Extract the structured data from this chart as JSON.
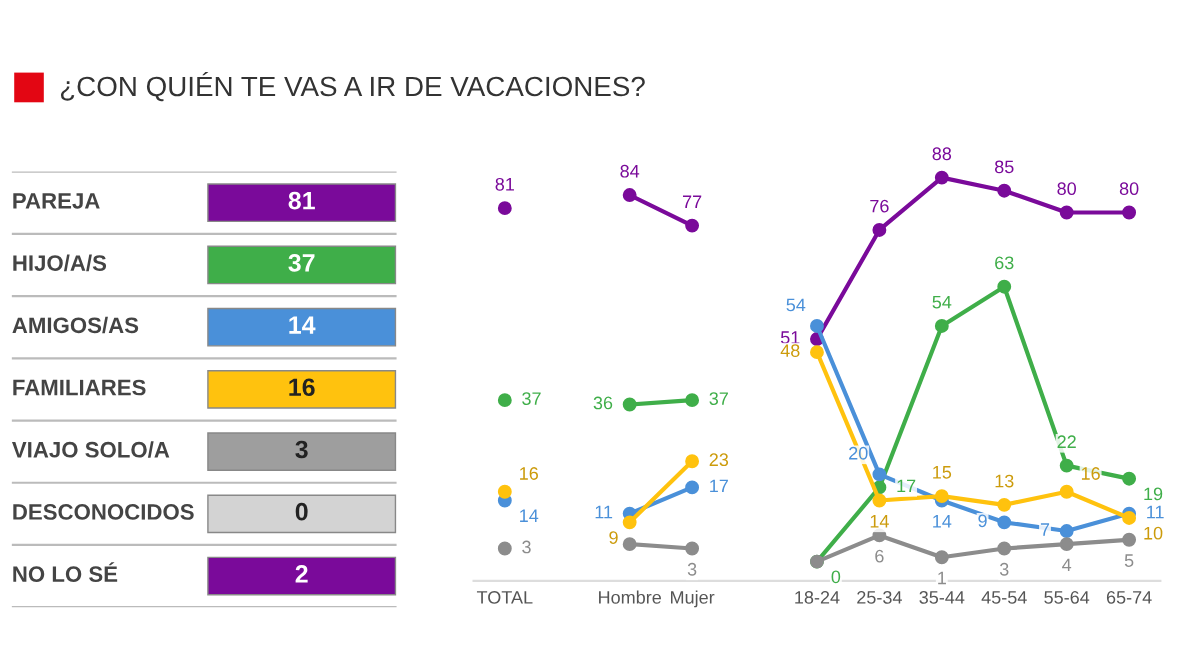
{
  "chart_data": [
    {
      "type": "other",
      "title": "¿CON QUIÉN TE VAS A IR DE VACACIONES?",
      "categories": [
        "PAREJA",
        "HIJO/A/S",
        "AMIGOS/AS",
        "FAMILIARES",
        "VIAJO SOLO/A",
        "DESCONOCIDOS",
        "NO LO SÉ"
      ],
      "values": [
        81,
        37,
        14,
        16,
        3,
        0,
        2
      ],
      "colors": [
        "#7a0a9a",
        "#3fae49",
        "#4a90d9",
        "#ffc20e",
        "#9e9e9e",
        "#d3d3d3",
        "#7a0a9a"
      ],
      "data_labels": true
    },
    {
      "type": "line",
      "marker": "circle",
      "line_style": "solid",
      "grid": false,
      "legend": false,
      "categories": [
        "TOTAL",
        null,
        "Hombre",
        "Mujer",
        null,
        "18-24",
        "25-34",
        "35-44",
        "45-54",
        "55-64",
        "65-74"
      ],
      "series": [
        {
          "color": "#7a0a9a",
          "values": [
            81,
            null,
            84,
            77,
            null,
            51,
            76,
            88,
            85,
            80,
            80
          ],
          "value_labels": [
            "81",
            null,
            "84",
            "77",
            null,
            "51",
            "76",
            "88",
            "85",
            "80",
            "80"
          ]
        },
        {
          "color": "#3fae49",
          "values": [
            37,
            null,
            36,
            37,
            null,
            0,
            17,
            54,
            63,
            22,
            19
          ],
          "value_labels": [
            "37",
            null,
            "36",
            "37",
            null,
            "0",
            "17",
            "54",
            "63",
            "22",
            "19"
          ]
        },
        {
          "color": "#4a90d9",
          "values": [
            14,
            null,
            11,
            17,
            null,
            54,
            20,
            14,
            9,
            7,
            11
          ],
          "value_labels": [
            "14",
            null,
            "11",
            "17",
            null,
            "54",
            "20",
            "14",
            "9",
            "7",
            "11"
          ]
        },
        {
          "color": "#ffc20e",
          "values": [
            16,
            null,
            9,
            23,
            null,
            48,
            14,
            15,
            13,
            16,
            10
          ],
          "value_labels": [
            "16",
            null,
            "9",
            "23",
            null,
            "48",
            "14",
            "15",
            "13",
            "16",
            "10"
          ]
        },
        {
          "color": "#8c8c8c",
          "values": [
            3,
            null,
            4,
            3,
            null,
            0,
            6,
            1,
            3,
            4,
            5
          ],
          "value_labels": [
            "3",
            null,
            null,
            "3",
            null,
            null,
            "6",
            "1",
            "3",
            "4",
            "5"
          ]
        }
      ]
    }
  ]
}
